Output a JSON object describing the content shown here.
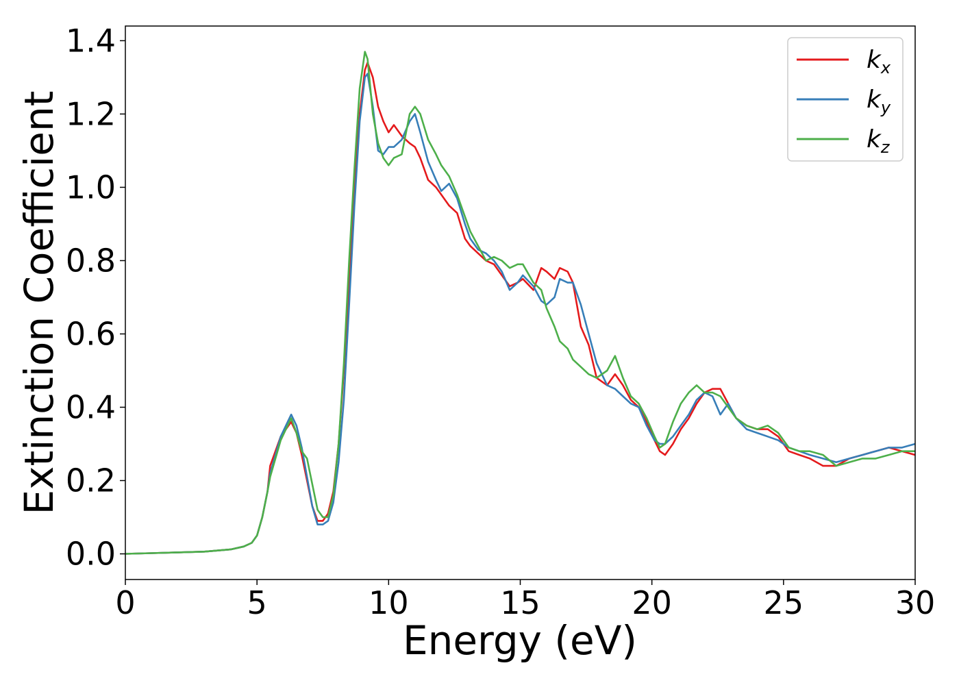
{
  "chart_data": {
    "type": "line",
    "xlabel": "Energy (eV)",
    "ylabel": "Extinction Coefficient",
    "xlim": [
      0,
      30
    ],
    "ylim": [
      -0.07,
      1.44
    ],
    "xticks": [
      0,
      5,
      10,
      15,
      20,
      25,
      30
    ],
    "xtick_labels": [
      "0",
      "5",
      "10",
      "15",
      "20",
      "25",
      "30"
    ],
    "yticks": [
      0.0,
      0.2,
      0.4,
      0.6,
      0.8,
      1.0,
      1.2,
      1.4
    ],
    "ytick_labels": [
      "0.0",
      "0.2",
      "0.4",
      "0.6",
      "0.8",
      "1.0",
      "1.2",
      "1.4"
    ],
    "grid": false,
    "legend_position": "top-right",
    "series": [
      {
        "name": "k_x",
        "label_base": "k",
        "label_sub": "x",
        "color": "#e41a1c",
        "x": [
          0,
          1,
          2,
          3,
          4,
          4.5,
          4.8,
          5.0,
          5.2,
          5.4,
          5.5,
          5.7,
          5.9,
          6.1,
          6.3,
          6.5,
          6.7,
          6.9,
          7.1,
          7.3,
          7.5,
          7.7,
          7.9,
          8.1,
          8.3,
          8.5,
          8.7,
          8.9,
          9.1,
          9.2,
          9.4,
          9.6,
          9.8,
          10.0,
          10.2,
          10.5,
          10.8,
          11.0,
          11.2,
          11.5,
          11.8,
          12.0,
          12.3,
          12.6,
          12.9,
          13.1,
          13.4,
          13.7,
          14.0,
          14.3,
          14.6,
          14.9,
          15.1,
          15.5,
          15.8,
          16.0,
          16.3,
          16.5,
          16.8,
          17.0,
          17.3,
          17.6,
          17.9,
          18.3,
          18.6,
          18.9,
          19.2,
          19.5,
          19.8,
          20.1,
          20.3,
          20.5,
          20.8,
          21.1,
          21.4,
          21.7,
          22.0,
          22.3,
          22.6,
          22.9,
          23.2,
          23.6,
          24.0,
          24.4,
          24.8,
          25.2,
          25.6,
          26.0,
          26.5,
          27.0,
          27.5,
          28.0,
          28.5,
          29.0,
          29.5,
          30.0
        ],
        "values": [
          0.0,
          0.002,
          0.004,
          0.006,
          0.012,
          0.02,
          0.03,
          0.05,
          0.1,
          0.17,
          0.24,
          0.28,
          0.32,
          0.34,
          0.36,
          0.33,
          0.27,
          0.2,
          0.13,
          0.09,
          0.09,
          0.11,
          0.17,
          0.3,
          0.5,
          0.75,
          1.0,
          1.2,
          1.32,
          1.34,
          1.3,
          1.22,
          1.18,
          1.15,
          1.17,
          1.14,
          1.12,
          1.11,
          1.08,
          1.02,
          1.0,
          0.98,
          0.95,
          0.93,
          0.86,
          0.84,
          0.82,
          0.8,
          0.79,
          0.76,
          0.73,
          0.74,
          0.75,
          0.72,
          0.78,
          0.77,
          0.75,
          0.78,
          0.77,
          0.74,
          0.62,
          0.57,
          0.48,
          0.46,
          0.49,
          0.46,
          0.42,
          0.4,
          0.36,
          0.31,
          0.28,
          0.27,
          0.3,
          0.34,
          0.37,
          0.41,
          0.44,
          0.45,
          0.45,
          0.41,
          0.37,
          0.35,
          0.34,
          0.34,
          0.32,
          0.28,
          0.27,
          0.26,
          0.24,
          0.24,
          0.26,
          0.27,
          0.28,
          0.29,
          0.28,
          0.27
        ]
      },
      {
        "name": "k_y",
        "label_base": "k",
        "label_sub": "y",
        "color": "#377eb8",
        "x": [
          0,
          1,
          2,
          3,
          4,
          4.5,
          4.8,
          5.0,
          5.2,
          5.4,
          5.5,
          5.7,
          5.9,
          6.1,
          6.3,
          6.5,
          6.7,
          6.9,
          7.1,
          7.3,
          7.5,
          7.7,
          7.9,
          8.1,
          8.3,
          8.5,
          8.7,
          8.9,
          9.1,
          9.2,
          9.4,
          9.6,
          9.8,
          10.0,
          10.2,
          10.5,
          10.8,
          11.0,
          11.2,
          11.5,
          11.8,
          12.0,
          12.3,
          12.6,
          12.9,
          13.1,
          13.4,
          13.7,
          14.0,
          14.3,
          14.6,
          14.9,
          15.1,
          15.5,
          15.8,
          16.0,
          16.3,
          16.5,
          16.8,
          17.0,
          17.3,
          17.6,
          17.9,
          18.3,
          18.6,
          18.9,
          19.2,
          19.5,
          19.8,
          20.1,
          20.3,
          20.5,
          20.8,
          21.1,
          21.4,
          21.7,
          22.0,
          22.3,
          22.6,
          22.9,
          23.2,
          23.6,
          24.0,
          24.4,
          24.8,
          25.2,
          25.6,
          26.0,
          26.5,
          27.0,
          27.5,
          28.0,
          28.5,
          29.0,
          29.5,
          30.0
        ],
        "values": [
          0.0,
          0.002,
          0.004,
          0.006,
          0.012,
          0.02,
          0.03,
          0.05,
          0.1,
          0.17,
          0.22,
          0.27,
          0.32,
          0.35,
          0.38,
          0.35,
          0.29,
          0.21,
          0.13,
          0.08,
          0.08,
          0.09,
          0.14,
          0.25,
          0.42,
          0.68,
          0.95,
          1.18,
          1.3,
          1.31,
          1.22,
          1.1,
          1.09,
          1.11,
          1.11,
          1.13,
          1.18,
          1.2,
          1.15,
          1.07,
          1.02,
          0.99,
          1.01,
          0.97,
          0.9,
          0.86,
          0.83,
          0.82,
          0.8,
          0.77,
          0.72,
          0.74,
          0.76,
          0.73,
          0.69,
          0.68,
          0.7,
          0.75,
          0.74,
          0.74,
          0.68,
          0.6,
          0.52,
          0.46,
          0.45,
          0.43,
          0.41,
          0.4,
          0.35,
          0.31,
          0.3,
          0.3,
          0.32,
          0.35,
          0.38,
          0.42,
          0.44,
          0.43,
          0.38,
          0.41,
          0.37,
          0.34,
          0.33,
          0.32,
          0.31,
          0.29,
          0.28,
          0.27,
          0.26,
          0.25,
          0.26,
          0.27,
          0.28,
          0.29,
          0.29,
          0.3
        ]
      },
      {
        "name": "k_z",
        "label_base": "k",
        "label_sub": "z",
        "color": "#4daf4a",
        "x": [
          0,
          1,
          2,
          3,
          4,
          4.5,
          4.8,
          5.0,
          5.2,
          5.4,
          5.5,
          5.7,
          5.9,
          6.1,
          6.3,
          6.5,
          6.7,
          6.9,
          7.1,
          7.3,
          7.5,
          7.7,
          7.9,
          8.1,
          8.3,
          8.5,
          8.7,
          8.9,
          9.1,
          9.2,
          9.4,
          9.6,
          9.8,
          10.0,
          10.2,
          10.5,
          10.8,
          11.0,
          11.2,
          11.5,
          11.8,
          12.0,
          12.3,
          12.6,
          12.9,
          13.1,
          13.4,
          13.7,
          14.0,
          14.3,
          14.6,
          14.9,
          15.1,
          15.5,
          15.8,
          16.0,
          16.3,
          16.5,
          16.8,
          17.0,
          17.3,
          17.6,
          17.9,
          18.3,
          18.6,
          18.9,
          19.2,
          19.5,
          19.8,
          20.1,
          20.3,
          20.5,
          20.8,
          21.1,
          21.4,
          21.7,
          22.0,
          22.3,
          22.6,
          22.9,
          23.2,
          23.6,
          24.0,
          24.4,
          24.8,
          25.2,
          25.6,
          26.0,
          26.5,
          27.0,
          27.5,
          28.0,
          28.5,
          29.0,
          29.5,
          30.0
        ],
        "values": [
          0.0,
          0.002,
          0.004,
          0.006,
          0.012,
          0.02,
          0.03,
          0.05,
          0.1,
          0.17,
          0.21,
          0.26,
          0.31,
          0.34,
          0.37,
          0.33,
          0.28,
          0.26,
          0.19,
          0.12,
          0.1,
          0.1,
          0.16,
          0.3,
          0.52,
          0.8,
          1.05,
          1.27,
          1.37,
          1.35,
          1.2,
          1.12,
          1.08,
          1.06,
          1.08,
          1.09,
          1.2,
          1.22,
          1.2,
          1.13,
          1.09,
          1.06,
          1.03,
          0.98,
          0.92,
          0.88,
          0.84,
          0.8,
          0.81,
          0.8,
          0.78,
          0.79,
          0.79,
          0.74,
          0.72,
          0.67,
          0.62,
          0.58,
          0.56,
          0.53,
          0.51,
          0.49,
          0.48,
          0.5,
          0.54,
          0.48,
          0.43,
          0.41,
          0.37,
          0.32,
          0.29,
          0.3,
          0.36,
          0.41,
          0.44,
          0.46,
          0.44,
          0.44,
          0.43,
          0.4,
          0.37,
          0.35,
          0.34,
          0.35,
          0.33,
          0.29,
          0.28,
          0.28,
          0.27,
          0.24,
          0.25,
          0.26,
          0.26,
          0.27,
          0.28,
          0.28
        ]
      }
    ]
  }
}
